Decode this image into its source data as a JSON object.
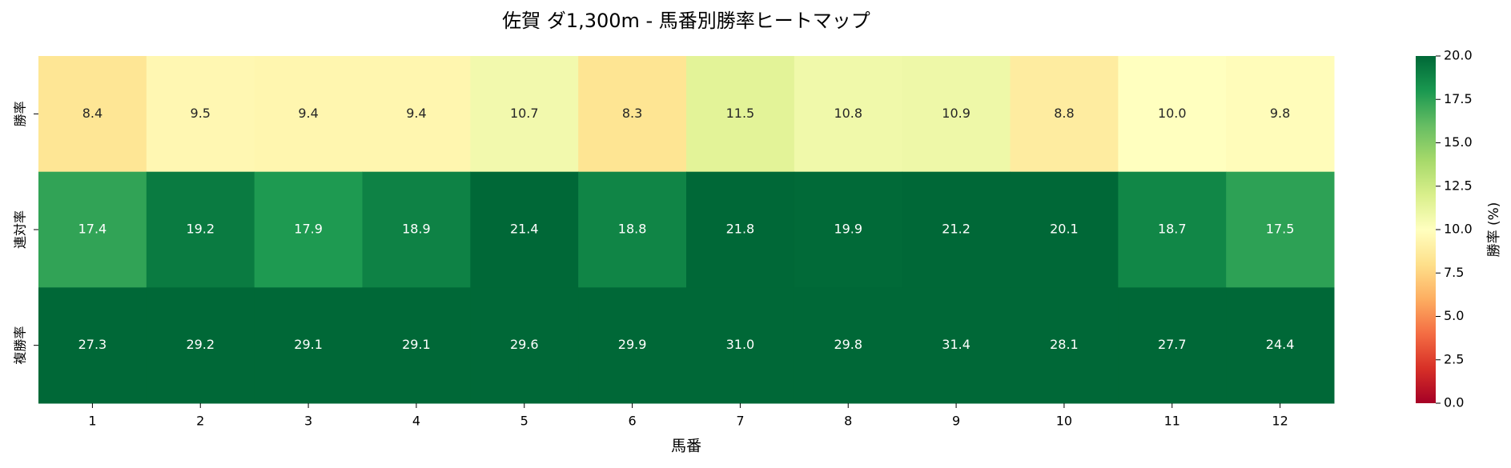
{
  "chart_data": {
    "type": "heatmap",
    "title": "佐賀 ダ1,300m - 馬番別勝率ヒートマップ",
    "x_label": "馬番",
    "x": [
      "1",
      "2",
      "3",
      "4",
      "5",
      "6",
      "7",
      "8",
      "9",
      "10",
      "11",
      "12"
    ],
    "y": [
      "勝率",
      "連対率",
      "複勝率"
    ],
    "values": [
      [
        8.4,
        9.5,
        9.4,
        9.4,
        10.7,
        8.3,
        11.5,
        10.8,
        10.9,
        8.8,
        10.0,
        9.8
      ],
      [
        17.4,
        19.2,
        17.9,
        18.9,
        21.4,
        18.8,
        21.8,
        19.9,
        21.2,
        20.1,
        18.7,
        17.5
      ],
      [
        27.3,
        29.2,
        29.1,
        29.1,
        29.6,
        29.9,
        31.0,
        29.8,
        31.4,
        28.1,
        27.7,
        24.4
      ]
    ],
    "value_labels": [
      [
        "8.4",
        "9.5",
        "9.4",
        "9.4",
        "10.7",
        "8.3",
        "11.5",
        "10.8",
        "10.9",
        "8.8",
        "10.0",
        "9.8"
      ],
      [
        "17.4",
        "19.2",
        "17.9",
        "18.9",
        "21.4",
        "18.8",
        "21.8",
        "19.9",
        "21.2",
        "20.1",
        "18.7",
        "17.5"
      ],
      [
        "27.3",
        "29.2",
        "29.1",
        "29.1",
        "29.6",
        "29.9",
        "31.0",
        "29.8",
        "31.4",
        "28.1",
        "27.7",
        "24.4"
      ]
    ],
    "colors": [
      "#a50026",
      "#d73027",
      "#f46d43",
      "#fdae61",
      "#fee08b",
      "#ffffbf",
      "#d9ef8b",
      "#a6d96a",
      "#66bd63",
      "#1a9850",
      "#006837"
    ],
    "vlim": [
      0,
      20
    ],
    "colorbar_label": "勝率 (%)",
    "colorbar_ticks": [
      {
        "value": 0,
        "label": "0.0"
      },
      2.5,
      {
        "value": 5,
        "label": "5.0"
      },
      7.5,
      {
        "value": 10,
        "label": "10.0"
      },
      12.5,
      {
        "value": 15,
        "label": "15.0"
      },
      17.5,
      {
        "value": 20,
        "label": "20.0"
      }
    ]
  }
}
